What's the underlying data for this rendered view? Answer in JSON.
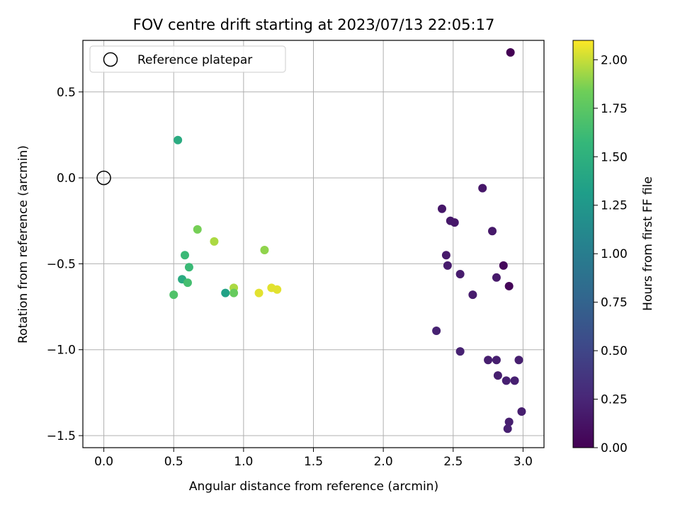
{
  "chart_data": {
    "type": "scatter",
    "title": "FOV centre drift starting at 2023/07/13 22:05:17",
    "xlabel": "Angular distance from reference (arcmin)",
    "ylabel": "Rotation from reference (arcmin)",
    "xlim": [
      -0.15,
      3.15
    ],
    "ylim": [
      -1.57,
      0.8
    ],
    "xticks": [
      0.0,
      0.5,
      1.0,
      1.5,
      2.0,
      2.5,
      3.0
    ],
    "xtick_labels": [
      "0.0",
      "0.5",
      "1.0",
      "1.5",
      "2.0",
      "2.5",
      "3.0"
    ],
    "yticks": [
      -1.5,
      -1.0,
      -0.5,
      0.0,
      0.5
    ],
    "ytick_labels": [
      "−1.5",
      "−1.0",
      "−0.5",
      "0.0",
      "0.5"
    ],
    "grid": true,
    "legend": {
      "position": "top-left",
      "entries": [
        "Reference platepar"
      ]
    },
    "reference_point": {
      "x": 0.0,
      "y": 0.0
    },
    "colorbar": {
      "label": "Hours from first FF file",
      "colormap": "viridis",
      "range": [
        0.0,
        2.1
      ],
      "ticks": [
        0.0,
        0.25,
        0.5,
        0.75,
        1.0,
        1.25,
        1.5,
        1.75,
        2.0
      ],
      "tick_labels": [
        "0.00",
        "0.25",
        "0.50",
        "0.75",
        "1.00",
        "1.25",
        "1.50",
        "1.75",
        "2.00"
      ]
    },
    "points": [
      {
        "x": 2.91,
        "y": 0.73,
        "c": 0.0
      },
      {
        "x": 2.9,
        "y": -0.63,
        "c": 0.03
      },
      {
        "x": 2.86,
        "y": -0.51,
        "c": 0.05
      },
      {
        "x": 2.71,
        "y": -0.06,
        "c": 0.15
      },
      {
        "x": 2.42,
        "y": -0.18,
        "c": 0.15
      },
      {
        "x": 2.48,
        "y": -0.25,
        "c": 0.16
      },
      {
        "x": 2.51,
        "y": -0.26,
        "c": 0.15
      },
      {
        "x": 2.78,
        "y": -0.31,
        "c": 0.16
      },
      {
        "x": 2.45,
        "y": -0.45,
        "c": 0.17
      },
      {
        "x": 2.46,
        "y": -0.51,
        "c": 0.18
      },
      {
        "x": 2.55,
        "y": -0.56,
        "c": 0.18
      },
      {
        "x": 2.81,
        "y": -0.58,
        "c": 0.17
      },
      {
        "x": 2.64,
        "y": -0.68,
        "c": 0.18
      },
      {
        "x": 2.38,
        "y": -0.89,
        "c": 0.22
      },
      {
        "x": 2.55,
        "y": -1.01,
        "c": 0.22
      },
      {
        "x": 2.75,
        "y": -1.06,
        "c": 0.2
      },
      {
        "x": 2.81,
        "y": -1.06,
        "c": 0.2
      },
      {
        "x": 2.97,
        "y": -1.06,
        "c": 0.2
      },
      {
        "x": 2.82,
        "y": -1.15,
        "c": 0.2
      },
      {
        "x": 2.88,
        "y": -1.18,
        "c": 0.21
      },
      {
        "x": 2.94,
        "y": -1.18,
        "c": 0.21
      },
      {
        "x": 2.99,
        "y": -1.36,
        "c": 0.2
      },
      {
        "x": 2.9,
        "y": -1.42,
        "c": 0.2
      },
      {
        "x": 2.89,
        "y": -1.46,
        "c": 0.21
      },
      {
        "x": 0.53,
        "y": 0.22,
        "c": 1.45
      },
      {
        "x": 0.67,
        "y": -0.3,
        "c": 1.85
      },
      {
        "x": 0.79,
        "y": -0.37,
        "c": 1.95
      },
      {
        "x": 0.58,
        "y": -0.45,
        "c": 1.6
      },
      {
        "x": 0.61,
        "y": -0.52,
        "c": 1.6
      },
      {
        "x": 0.56,
        "y": -0.59,
        "c": 1.45
      },
      {
        "x": 0.6,
        "y": -0.61,
        "c": 1.65
      },
      {
        "x": 0.5,
        "y": -0.68,
        "c": 1.7
      },
      {
        "x": 0.87,
        "y": -0.67,
        "c": 1.35
      },
      {
        "x": 0.93,
        "y": -0.64,
        "c": 1.95
      },
      {
        "x": 0.93,
        "y": -0.67,
        "c": 1.8
      },
      {
        "x": 1.15,
        "y": -0.42,
        "c": 1.9
      },
      {
        "x": 1.11,
        "y": -0.67,
        "c": 2.05
      },
      {
        "x": 1.2,
        "y": -0.64,
        "c": 2.05
      },
      {
        "x": 1.24,
        "y": -0.65,
        "c": 2.05
      }
    ]
  }
}
